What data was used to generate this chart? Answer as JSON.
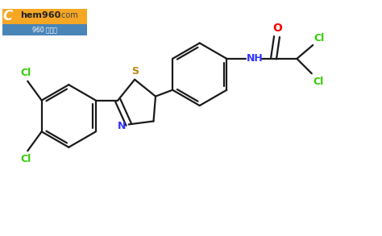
{
  "background_color": "#ffffff",
  "bond_color": "#1a1a1a",
  "cl_color": "#33cc00",
  "s_color": "#b8860b",
  "n_color": "#3333ff",
  "o_color": "#ff0000",
  "bond_width": 1.6,
  "figsize": [
    4.74,
    2.93
  ],
  "dpi": 100,
  "xlim": [
    0,
    9.5
  ],
  "ylim": [
    0,
    5.8
  ]
}
